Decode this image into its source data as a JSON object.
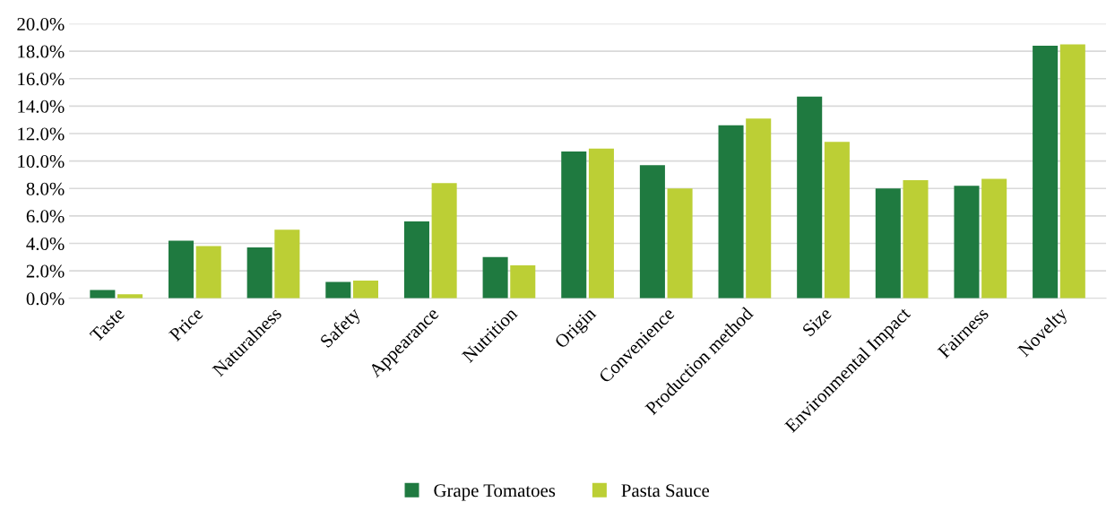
{
  "chart_data": {
    "type": "bar",
    "categories": [
      "Taste",
      "Price",
      "Naturalness",
      "Safety",
      "Appearance",
      "Nutrition",
      "Origin",
      "Convenience",
      "Production method",
      "Size",
      "Environmental Impact",
      "Fairness",
      "Novelty"
    ],
    "series": [
      {
        "name": "Grape Tomatoes",
        "color": "#1f7a40",
        "values": [
          0.6,
          4.2,
          3.7,
          1.2,
          5.6,
          3.0,
          10.7,
          9.7,
          12.6,
          14.7,
          8.0,
          8.2,
          18.4
        ]
      },
      {
        "name": "Pasta Sauce",
        "color": "#bccf35",
        "values": [
          0.3,
          3.8,
          5.0,
          1.3,
          8.4,
          2.4,
          10.9,
          8.0,
          13.1,
          11.4,
          8.6,
          8.7,
          18.5
        ]
      }
    ],
    "ylim": [
      0,
      20
    ],
    "yticks": [
      {
        "value": 0,
        "label": "0.0%"
      },
      {
        "value": 2,
        "label": "2.0%"
      },
      {
        "value": 4,
        "label": "4.0%"
      },
      {
        "value": 6,
        "label": "6.0%"
      },
      {
        "value": 8,
        "label": "8.0%"
      },
      {
        "value": 10,
        "label": "10.0%"
      },
      {
        "value": 12,
        "label": "12.0%"
      },
      {
        "value": 14,
        "label": "14.0%"
      },
      {
        "value": 16,
        "label": "16.0%"
      },
      {
        "value": 18,
        "label": "18.0%"
      },
      {
        "value": 20,
        "label": "20.0%"
      }
    ],
    "grid": "y",
    "legend": "bottom"
  }
}
